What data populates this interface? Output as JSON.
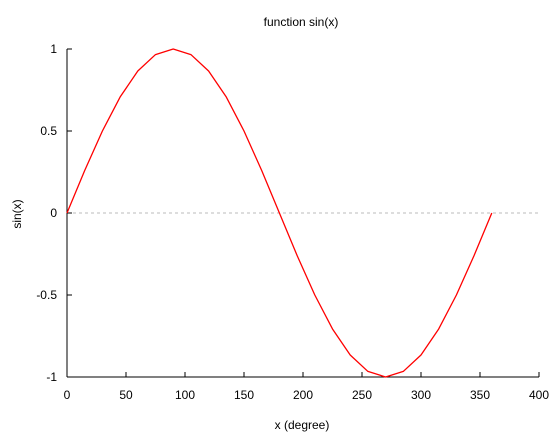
{
  "chart_data": {
    "type": "line",
    "title": "function sin(x)",
    "xlabel": "x (degree)",
    "ylabel": "sin(x)",
    "xlim": [
      0,
      400
    ],
    "ylim": [
      -1,
      1
    ],
    "xticks": [
      0,
      50,
      100,
      150,
      200,
      250,
      300,
      350,
      400
    ],
    "xtick_labels": [
      "0",
      "50",
      "100",
      "150",
      "200",
      "250",
      "300",
      "350",
      "400"
    ],
    "yticks": [
      1,
      0.5,
      0,
      -0.5,
      -1
    ],
    "ytick_labels": [
      "1",
      "0.5",
      "0",
      "-0.5",
      "-1"
    ],
    "grid": false,
    "zero_line": true,
    "legend": "none",
    "colors": {
      "line": "#ff0000",
      "axis": "#000000",
      "zero_line": "#bbbbbb"
    },
    "series": [
      {
        "x": [
          0,
          15,
          30,
          45,
          60,
          75,
          90,
          105,
          120,
          135,
          150,
          165,
          180,
          195,
          210,
          225,
          240,
          255,
          270,
          285,
          300,
          315,
          330,
          345,
          360
        ],
        "values": [
          0,
          0.259,
          0.5,
          0.707,
          0.866,
          0.966,
          1,
          0.966,
          0.866,
          0.707,
          0.5,
          0.259,
          0,
          -0.259,
          -0.5,
          -0.707,
          -0.866,
          -0.966,
          -1,
          -0.966,
          -0.866,
          -0.707,
          -0.5,
          -0.259,
          0
        ]
      }
    ]
  }
}
